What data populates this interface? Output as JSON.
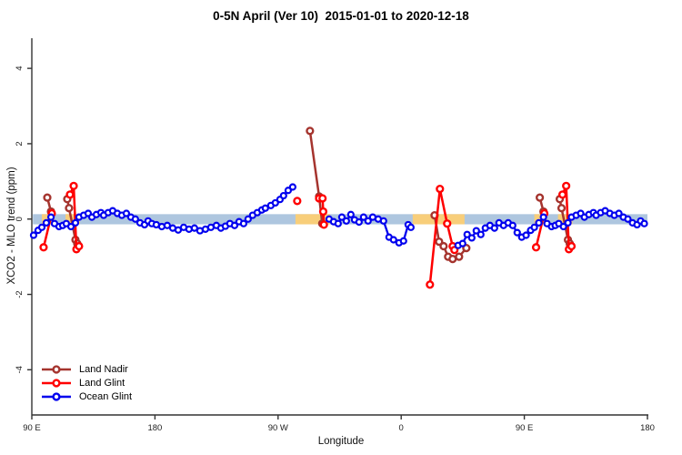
{
  "title": "0-5N April (Ver 10)  2015-01-01 to 2020-12-18",
  "axes": {
    "x_label": "Longitude",
    "y_label": "XCO2 - MLO trend (ppm)",
    "x_ticks": [
      {
        "deg": 90,
        "label": "90 E"
      },
      {
        "deg": 180,
        "label": "180"
      },
      {
        "deg": 270,
        "label": "90 W"
      },
      {
        "deg": 360,
        "label": "0"
      },
      {
        "deg": 450,
        "label": "90 E"
      },
      {
        "deg": 540,
        "label": "180"
      }
    ],
    "y_ticks": [
      {
        "v": -4,
        "label": "-4"
      },
      {
        "v": -2,
        "label": "-2"
      },
      {
        "v": 0,
        "label": "0"
      },
      {
        "v": 2,
        "label": "2"
      },
      {
        "v": 4,
        "label": "4"
      }
    ],
    "axis_color": "#333333"
  },
  "chart_data": {
    "type": "line",
    "x_domain": [
      90,
      540
    ],
    "y_domain": [
      -5.2,
      4.8
    ],
    "note": "x = longitude plotted from 90E eastward wrapping to 180; segment 450-540 repeats 90-180",
    "bands": {
      "y_low": -0.14,
      "y_high": 0.13,
      "base_color": "#AEC6DF",
      "base_range": [
        90.8,
        540
      ],
      "highlight_color": "#F8CE7A",
      "highlight_ranges": [
        [
          97.3,
          106.6
        ],
        [
          114.6,
          125.2
        ],
        [
          282.7,
          308.0
        ],
        [
          368.4,
          406.3
        ],
        [
          457.3,
          466.6
        ],
        [
          474.6,
          485.2
        ]
      ]
    },
    "series": [
      {
        "name": "Land Nadir",
        "color": "#A5342E",
        "marker_r": 3.4,
        "line_w": 2.5,
        "segments": [
          [
            [
              101.3,
              0.57
            ],
            [
              104.0,
              0.2
            ]
          ],
          [
            [
              115.9,
              0.53
            ],
            [
              117.2,
              0.29
            ],
            [
              121.9,
              -0.55
            ],
            [
              123.2,
              -0.65
            ]
          ],
          [
            [
              293.3,
              2.34
            ],
            [
              300.0,
              0.6
            ],
            [
              302.3,
              -0.12
            ]
          ],
          [
            [
              384.4,
              0.1
            ],
            [
              387.7,
              -0.6
            ],
            [
              391.0,
              -0.72
            ],
            [
              394.3,
              -1.0
            ],
            [
              397.6,
              -1.06
            ],
            [
              402.3,
              -1.0
            ],
            [
              407.6,
              -0.77
            ]
          ],
          [
            [
              461.3,
              0.57
            ],
            [
              464.0,
              0.2
            ]
          ],
          [
            [
              475.9,
              0.53
            ],
            [
              477.2,
              0.29
            ],
            [
              481.9,
              -0.55
            ],
            [
              483.2,
              -0.65
            ]
          ]
        ]
      },
      {
        "name": "Land Glint",
        "color": "#FF0000",
        "marker_r": 3.4,
        "line_w": 2.5,
        "segments": [
          [
            [
              98.6,
              -0.75
            ],
            [
              104.6,
              0.15
            ]
          ],
          [
            [
              117.9,
              0.65
            ],
            [
              120.6,
              0.88
            ],
            [
              122.6,
              -0.8
            ],
            [
              124.5,
              -0.72
            ]
          ],
          [
            [
              284.0,
              0.48
            ]
          ],
          [
            [
              300.0,
              0.55
            ],
            [
              302.5,
              0.55
            ],
            [
              303.0,
              0.2
            ],
            [
              303.5,
              -0.15
            ]
          ],
          [
            [
              381.0,
              -1.74
            ],
            [
              388.3,
              0.8
            ],
            [
              393.6,
              -0.12
            ],
            [
              397.6,
              -0.72
            ],
            [
              398.9,
              -0.82
            ]
          ],
          [
            [
              458.6,
              -0.75
            ],
            [
              464.6,
              0.15
            ]
          ],
          [
            [
              477.9,
              0.65
            ],
            [
              480.6,
              0.88
            ],
            [
              482.6,
              -0.8
            ],
            [
              484.5,
              -0.72
            ]
          ]
        ]
      },
      {
        "name": "Ocean Glint",
        "color": "#0000EE",
        "marker_r": 3.0,
        "line_w": 2.3,
        "segments": [
          [
            [
              91.3,
              -0.43
            ],
            [
              94.6,
              -0.3
            ],
            [
              97.3,
              -0.22
            ],
            [
              100.6,
              -0.1
            ],
            [
              104.0,
              0.05
            ],
            [
              106.6,
              -0.12
            ],
            [
              109.9,
              -0.2
            ],
            [
              112.6,
              -0.17
            ],
            [
              115.2,
              -0.12
            ],
            [
              118.6,
              -0.2
            ],
            [
              121.9,
              -0.1
            ],
            [
              124.5,
              0.05
            ],
            [
              127.9,
              0.1
            ],
            [
              131.2,
              0.15
            ],
            [
              133.9,
              0.05
            ],
            [
              137.2,
              0.12
            ],
            [
              140.5,
              0.17
            ],
            [
              142.5,
              0.1
            ],
            [
              145.8,
              0.17
            ],
            [
              149.1,
              0.22
            ],
            [
              152.5,
              0.15
            ],
            [
              155.8,
              0.1
            ],
            [
              159.1,
              0.15
            ],
            [
              162.4,
              0.05
            ],
            [
              165.7,
              0.0
            ],
            [
              169.1,
              -0.1
            ],
            [
              172.4,
              -0.15
            ],
            [
              175.0,
              -0.05
            ],
            [
              177.7,
              -0.12
            ],
            [
              181.0,
              -0.15
            ],
            [
              185.0,
              -0.2
            ],
            [
              189.0,
              -0.17
            ],
            [
              193.0,
              -0.24
            ],
            [
              197.0,
              -0.29
            ],
            [
              201.0,
              -0.22
            ],
            [
              204.9,
              -0.27
            ],
            [
              208.9,
              -0.24
            ],
            [
              212.9,
              -0.31
            ],
            [
              216.9,
              -0.27
            ],
            [
              220.9,
              -0.22
            ],
            [
              224.9,
              -0.17
            ],
            [
              228.2,
              -0.24
            ],
            [
              231.5,
              -0.19
            ],
            [
              234.8,
              -0.12
            ],
            [
              238.2,
              -0.17
            ],
            [
              241.5,
              -0.07
            ],
            [
              244.8,
              -0.12
            ],
            [
              248.1,
              0.0
            ],
            [
              251.4,
              0.1
            ],
            [
              254.8,
              0.17
            ],
            [
              258.1,
              0.24
            ],
            [
              260.7,
              0.29
            ],
            [
              264.7,
              0.36
            ],
            [
              268.0,
              0.43
            ],
            [
              271.4,
              0.52
            ],
            [
              274.0,
              0.62
            ],
            [
              277.4,
              0.76
            ],
            [
              280.7,
              0.85
            ]
          ],
          [
            [
              307.3,
              0.0
            ],
            [
              310.6,
              -0.07
            ],
            [
              313.9,
              -0.12
            ],
            [
              316.6,
              0.05
            ],
            [
              319.9,
              -0.05
            ],
            [
              323.2,
              0.12
            ],
            [
              325.9,
              -0.02
            ],
            [
              329.2,
              -0.08
            ],
            [
              332.5,
              0.05
            ],
            [
              335.8,
              -0.05
            ],
            [
              339.2,
              0.05
            ],
            [
              343.2,
              0.0
            ],
            [
              347.1,
              -0.05
            ],
            [
              351.1,
              -0.48
            ],
            [
              354.4,
              -0.55
            ],
            [
              358.4,
              -0.63
            ],
            [
              361.7,
              -0.58
            ],
            [
              365.1,
              -0.15
            ],
            [
              367.1,
              -0.22
            ]
          ],
          [
            [
              401.6,
              -0.7
            ],
            [
              404.9,
              -0.65
            ],
            [
              408.2,
              -0.41
            ],
            [
              411.6,
              -0.5
            ],
            [
              414.9,
              -0.31
            ],
            [
              418.2,
              -0.41
            ],
            [
              421.5,
              -0.24
            ],
            [
              424.9,
              -0.17
            ],
            [
              428.2,
              -0.24
            ],
            [
              431.5,
              -0.1
            ],
            [
              434.8,
              -0.17
            ],
            [
              438.2,
              -0.1
            ],
            [
              441.5,
              -0.17
            ],
            [
              444.8,
              -0.36
            ],
            [
              448.1,
              -0.48
            ],
            [
              451.3,
              -0.43
            ],
            [
              454.6,
              -0.3
            ],
            [
              457.3,
              -0.22
            ],
            [
              460.6,
              -0.1
            ],
            [
              464.0,
              0.05
            ],
            [
              466.6,
              -0.12
            ],
            [
              469.9,
              -0.2
            ],
            [
              472.6,
              -0.17
            ],
            [
              475.2,
              -0.12
            ],
            [
              478.6,
              -0.2
            ],
            [
              481.9,
              -0.1
            ],
            [
              484.5,
              0.05
            ],
            [
              487.9,
              0.1
            ],
            [
              491.2,
              0.15
            ],
            [
              493.9,
              0.05
            ],
            [
              497.2,
              0.12
            ],
            [
              500.5,
              0.17
            ],
            [
              502.5,
              0.1
            ],
            [
              505.8,
              0.17
            ],
            [
              509.1,
              0.22
            ],
            [
              512.5,
              0.15
            ],
            [
              515.8,
              0.1
            ],
            [
              519.1,
              0.15
            ],
            [
              522.4,
              0.05
            ],
            [
              525.7,
              0.0
            ],
            [
              529.1,
              -0.1
            ],
            [
              532.4,
              -0.15
            ],
            [
              535.0,
              -0.05
            ],
            [
              537.7,
              -0.12
            ]
          ]
        ]
      }
    ]
  },
  "legend": {
    "items": [
      {
        "label": "Land Nadir"
      },
      {
        "label": "Land Glint"
      },
      {
        "label": "Ocean Glint"
      }
    ]
  }
}
